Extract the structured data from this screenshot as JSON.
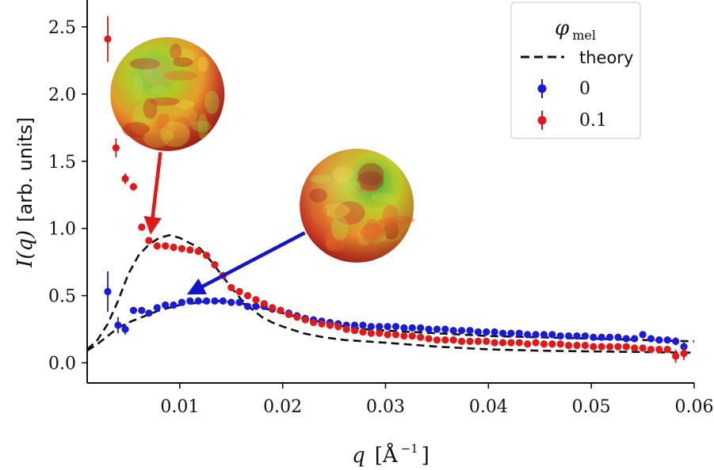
{
  "chart_data": {
    "type": "scatter",
    "title": "",
    "xlabel_main": "q",
    "xlabel_unit": "[Å",
    "xlabel_exp": "−1",
    "xlabel_close": "]",
    "ylabel_main": "I(q)",
    "ylabel_unit": "[arb. units]",
    "xlim": [
      0.001,
      0.06
    ],
    "ylim": [
      -0.15,
      2.7
    ],
    "xticks": [
      0.01,
      0.02,
      0.03,
      0.04,
      0.05,
      0.06
    ],
    "xtick_labels": [
      "0.01",
      "0.02",
      "0.03",
      "0.04",
      "0.05",
      "0.06"
    ],
    "yticks": [
      0.0,
      0.5,
      1.0,
      1.5,
      2.0,
      2.5
    ],
    "ytick_labels": [
      "0.0",
      "0.5",
      "1.0",
      "1.5",
      "2.0",
      "2.5"
    ],
    "legend": {
      "title_main": "φ",
      "title_sub": "mel",
      "position": "top-right",
      "entries": [
        {
          "label": "theory",
          "kind": "dashed-line",
          "color": "#111111"
        },
        {
          "label": "0",
          "kind": "errorbar-point",
          "color": "#1a1adb"
        },
        {
          "label": "0.1",
          "kind": "errorbar-point",
          "color": "#e01818"
        }
      ]
    },
    "series": [
      {
        "name": "0",
        "color": "#1a1adb",
        "x": [
          0.003,
          0.004,
          0.0047,
          0.0055,
          0.0063,
          0.007,
          0.0078,
          0.0086,
          0.0094,
          0.0102,
          0.011,
          0.0118,
          0.0126,
          0.0134,
          0.0142,
          0.015,
          0.0158,
          0.0166,
          0.0174,
          0.0182,
          0.019,
          0.0198,
          0.0206,
          0.0214,
          0.0222,
          0.023,
          0.0238,
          0.0246,
          0.0254,
          0.0262,
          0.027,
          0.0278,
          0.0286,
          0.0294,
          0.0302,
          0.031,
          0.0318,
          0.0326,
          0.0334,
          0.0342,
          0.035,
          0.0358,
          0.0366,
          0.0374,
          0.0382,
          0.039,
          0.0398,
          0.0406,
          0.0414,
          0.0422,
          0.043,
          0.0438,
          0.0446,
          0.0454,
          0.0462,
          0.047,
          0.0478,
          0.0486,
          0.0494,
          0.0502,
          0.051,
          0.0518,
          0.0526,
          0.0534,
          0.0542,
          0.055,
          0.0558,
          0.0566,
          0.0574,
          0.0582,
          0.059
        ],
        "y": [
          0.53,
          0.28,
          0.25,
          0.39,
          0.39,
          0.37,
          0.41,
          0.43,
          0.43,
          0.45,
          0.46,
          0.46,
          0.46,
          0.46,
          0.46,
          0.45,
          0.45,
          0.42,
          0.42,
          0.42,
          0.4,
          0.39,
          0.37,
          0.35,
          0.33,
          0.32,
          0.31,
          0.3,
          0.29,
          0.28,
          0.28,
          0.28,
          0.27,
          0.27,
          0.27,
          0.27,
          0.26,
          0.26,
          0.26,
          0.25,
          0.25,
          0.25,
          0.24,
          0.24,
          0.24,
          0.23,
          0.23,
          0.23,
          0.22,
          0.22,
          0.22,
          0.21,
          0.21,
          0.21,
          0.21,
          0.2,
          0.2,
          0.2,
          0.2,
          0.19,
          0.19,
          0.19,
          0.19,
          0.18,
          0.18,
          0.21,
          0.18,
          0.17,
          0.17,
          0.16,
          0.12
        ],
        "err": [
          0.15,
          0.06,
          0.04,
          0.02,
          0.02,
          0.02,
          0.02,
          0.02,
          0.02,
          0.02,
          0.02,
          0.02,
          0.02,
          0.02,
          0.02,
          0.02,
          0.02,
          0.02,
          0.02,
          0.02,
          0.02,
          0.02,
          0.02,
          0.02,
          0.02,
          0.02,
          0.02,
          0.02,
          0.02,
          0.02,
          0.02,
          0.02,
          0.02,
          0.02,
          0.02,
          0.02,
          0.02,
          0.02,
          0.02,
          0.02,
          0.02,
          0.02,
          0.02,
          0.02,
          0.02,
          0.02,
          0.02,
          0.02,
          0.02,
          0.02,
          0.02,
          0.02,
          0.02,
          0.02,
          0.02,
          0.02,
          0.02,
          0.02,
          0.02,
          0.02,
          0.02,
          0.02,
          0.02,
          0.02,
          0.02,
          0.02,
          0.02,
          0.02,
          0.02,
          0.03,
          0.05
        ]
      },
      {
        "name": "0.1",
        "color": "#e01818",
        "x": [
          0.003,
          0.0038,
          0.0047,
          0.0055,
          0.0063,
          0.007,
          0.0078,
          0.0086,
          0.0094,
          0.0102,
          0.011,
          0.0118,
          0.0126,
          0.0134,
          0.0142,
          0.015,
          0.0158,
          0.0166,
          0.0174,
          0.0182,
          0.019,
          0.0198,
          0.0206,
          0.0214,
          0.0222,
          0.023,
          0.0238,
          0.0246,
          0.0254,
          0.0262,
          0.027,
          0.0278,
          0.0286,
          0.0294,
          0.0302,
          0.031,
          0.0318,
          0.0326,
          0.0334,
          0.0342,
          0.035,
          0.0358,
          0.0366,
          0.0374,
          0.0382,
          0.039,
          0.0398,
          0.0406,
          0.0414,
          0.0422,
          0.043,
          0.0438,
          0.0446,
          0.0454,
          0.0462,
          0.047,
          0.0478,
          0.0486,
          0.0494,
          0.0502,
          0.051,
          0.0518,
          0.0526,
          0.0534,
          0.0542,
          0.055,
          0.0558,
          0.0566,
          0.0574,
          0.0582,
          0.059
        ],
        "y": [
          2.41,
          1.6,
          1.37,
          1.31,
          1.01,
          0.91,
          0.87,
          0.87,
          0.86,
          0.85,
          0.84,
          0.83,
          0.8,
          0.73,
          0.65,
          0.56,
          0.53,
          0.5,
          0.47,
          0.44,
          0.41,
          0.39,
          0.36,
          0.34,
          0.32,
          0.3,
          0.29,
          0.28,
          0.27,
          0.25,
          0.24,
          0.23,
          0.22,
          0.22,
          0.21,
          0.21,
          0.2,
          0.2,
          0.19,
          0.18,
          0.17,
          0.17,
          0.17,
          0.16,
          0.16,
          0.16,
          0.16,
          0.15,
          0.15,
          0.15,
          0.15,
          0.14,
          0.15,
          0.14,
          0.14,
          0.14,
          0.13,
          0.13,
          0.13,
          0.12,
          0.12,
          0.12,
          0.12,
          0.12,
          0.11,
          0.11,
          0.1,
          0.1,
          0.1,
          0.05,
          0.07
        ],
        "err": [
          0.17,
          0.07,
          0.04,
          0.03,
          0.02,
          0.02,
          0.02,
          0.02,
          0.02,
          0.02,
          0.02,
          0.02,
          0.02,
          0.02,
          0.02,
          0.02,
          0.02,
          0.02,
          0.02,
          0.02,
          0.02,
          0.02,
          0.02,
          0.02,
          0.02,
          0.02,
          0.02,
          0.02,
          0.02,
          0.02,
          0.02,
          0.02,
          0.02,
          0.02,
          0.02,
          0.02,
          0.02,
          0.02,
          0.02,
          0.02,
          0.02,
          0.02,
          0.02,
          0.02,
          0.02,
          0.02,
          0.02,
          0.02,
          0.02,
          0.02,
          0.02,
          0.02,
          0.02,
          0.02,
          0.02,
          0.02,
          0.02,
          0.02,
          0.02,
          0.02,
          0.02,
          0.02,
          0.02,
          0.02,
          0.02,
          0.02,
          0.02,
          0.02,
          0.02,
          0.05,
          0.05
        ]
      }
    ],
    "theory_curves": [
      {
        "name": "theory-phi-0",
        "x": [
          0.001,
          0.002,
          0.003,
          0.004,
          0.005,
          0.006,
          0.007,
          0.008,
          0.009,
          0.01,
          0.011,
          0.012,
          0.013,
          0.014,
          0.015,
          0.016,
          0.017,
          0.018,
          0.019,
          0.02,
          0.022,
          0.024,
          0.026,
          0.028,
          0.03,
          0.035,
          0.04,
          0.045,
          0.05,
          0.055,
          0.06
        ],
        "y": [
          0.09,
          0.14,
          0.2,
          0.26,
          0.3,
          0.33,
          0.36,
          0.39,
          0.41,
          0.43,
          0.44,
          0.45,
          0.46,
          0.46,
          0.45,
          0.44,
          0.43,
          0.41,
          0.39,
          0.37,
          0.33,
          0.3,
          0.27,
          0.25,
          0.24,
          0.22,
          0.2,
          0.19,
          0.18,
          0.17,
          0.16
        ]
      },
      {
        "name": "theory-phi-0.1",
        "x": [
          0.001,
          0.002,
          0.003,
          0.004,
          0.005,
          0.006,
          0.007,
          0.008,
          0.009,
          0.01,
          0.011,
          0.012,
          0.013,
          0.014,
          0.015,
          0.016,
          0.017,
          0.018,
          0.019,
          0.02,
          0.022,
          0.024,
          0.026,
          0.028,
          0.03,
          0.035,
          0.04,
          0.045,
          0.05,
          0.055,
          0.06
        ],
        "y": [
          0.1,
          0.17,
          0.29,
          0.46,
          0.66,
          0.8,
          0.88,
          0.93,
          0.95,
          0.93,
          0.89,
          0.85,
          0.76,
          0.66,
          0.56,
          0.47,
          0.4,
          0.34,
          0.3,
          0.27,
          0.22,
          0.19,
          0.17,
          0.16,
          0.15,
          0.12,
          0.1,
          0.09,
          0.085,
          0.08,
          0.075
        ]
      }
    ],
    "insets": [
      {
        "name": "sphere-phi-0.1",
        "cx": 0.0088,
        "cy": 2.0,
        "arrow_to": [
          0.0072,
          0.98
        ],
        "arrow_color": "#e01818"
      },
      {
        "name": "sphere-phi-0",
        "cx": 0.0272,
        "cy": 1.17,
        "arrow_to": [
          0.011,
          0.52
        ],
        "arrow_color": "#1414cc"
      }
    ]
  }
}
